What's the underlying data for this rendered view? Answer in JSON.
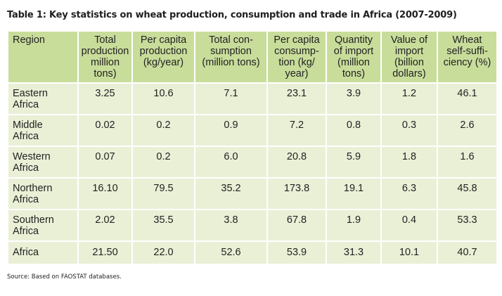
{
  "title": "Table 1: Key statistics on wheat production, consumption and trade in Africa (2007-2009)",
  "headers": [
    {
      "lines": [
        "Region"
      ]
    },
    {
      "lines": [
        "Total",
        "production",
        "million",
        "tons)"
      ]
    },
    {
      "lines": [
        "Per capita",
        "production",
        "(kg/year)"
      ]
    },
    {
      "lines": [
        "Total con-",
        "sumption",
        "(million tons)"
      ]
    },
    {
      "lines": [
        "Per capita",
        "consump-",
        "tion (kg/",
        "year)"
      ]
    },
    {
      "lines": [
        "Quantity",
        "of import",
        "(million",
        "tons)"
      ]
    },
    {
      "lines": [
        "Value of",
        "import",
        "(billion",
        "dollars)"
      ]
    },
    {
      "lines": [
        "Wheat",
        "self-suffi-",
        "ciency (%)"
      ]
    }
  ],
  "rows": [
    {
      "region": [
        "Eastern",
        "Africa"
      ],
      "values": [
        "3.25",
        "10.6",
        "7.1",
        "23.1",
        "3.9",
        "1.2",
        "46.1"
      ]
    },
    {
      "region": [
        "Middle",
        "Africa"
      ],
      "values": [
        "0.02",
        "0.2",
        "0.9",
        "7.2",
        "0.8",
        "0.3",
        "2.6"
      ]
    },
    {
      "region": [
        "Western",
        "Africa"
      ],
      "values": [
        "0.07",
        "0.2",
        "6.0",
        "20.8",
        "5.9",
        "1.8",
        "1.6"
      ]
    },
    {
      "region": [
        "Northern",
        "Africa"
      ],
      "values": [
        "16.10",
        "79.5",
        "35.2",
        "173.8",
        "19.1",
        "6.3",
        "45.8"
      ]
    },
    {
      "region": [
        "Southern",
        "Africa"
      ],
      "values": [
        "2.02",
        "35.5",
        "3.8",
        "67.8",
        "1.9",
        "0.4",
        "53.3"
      ]
    },
    {
      "region": [
        "Africa"
      ],
      "values": [
        "21.50",
        "22.0",
        "52.6",
        "53.9",
        "31.3",
        "10.1",
        "40.7"
      ]
    }
  ],
  "source": "Source: Based on FAOSTAT databases.",
  "colors": {
    "header_bg": "#c9dd9b",
    "cell_bg": "#e9f0d6",
    "border": "#ffffff"
  }
}
